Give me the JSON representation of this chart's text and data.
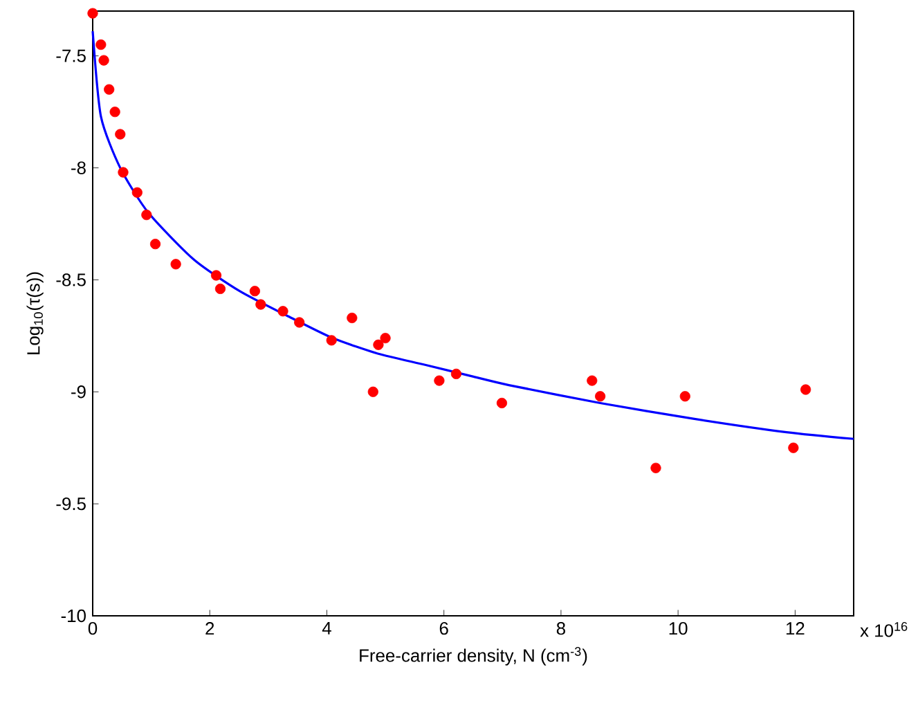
{
  "chart_data": {
    "type": "scatter",
    "xlabel": "Free-carrier density, N (cm$^{-3}$)",
    "ylabel": "Log$_{10}$(τ(s))",
    "annotations": [
      "x 10$^{16}$"
    ],
    "xlim": [
      0,
      13
    ],
    "ylim": [
      -10,
      -7.3
    ],
    "xticks": [
      0,
      2,
      4,
      6,
      8,
      10,
      12
    ],
    "yticks": [
      -10,
      -9.5,
      -9,
      -8.5,
      -8,
      -7.5
    ],
    "series": [
      {
        "marker": "circle",
        "color": "#ff0000",
        "x": [
          0,
          0.14,
          0.19,
          0.28,
          0.38,
          0.47,
          0.52,
          0.76,
          0.92,
          1.07,
          1.42,
          2.11,
          2.18,
          2.77,
          2.87,
          3.25,
          3.53,
          4.08,
          4.43,
          4.79,
          4.88,
          5.0,
          5.92,
          6.21,
          6.99,
          8.53,
          8.67,
          9.62,
          10.12,
          11.97,
          12.18
        ],
        "values": [
          -7.31,
          -7.45,
          -7.52,
          -7.65,
          -7.75,
          -7.85,
          -8.02,
          -8.11,
          -8.21,
          -8.34,
          -8.43,
          -8.48,
          -8.54,
          -8.55,
          -8.61,
          -8.64,
          -8.69,
          -8.77,
          -8.67,
          -9.0,
          -8.79,
          -8.76,
          -8.95,
          -8.92,
          -9.05,
          -8.95,
          -9.02,
          -9.34,
          -9.02,
          -9.25,
          -8.99
        ]
      },
      {
        "type": "line",
        "marker": "none",
        "line_style": "solid",
        "color": "#0000ff",
        "x": [
          0,
          0.14,
          0.47,
          0.95,
          1.73,
          2.51,
          3.32,
          4.1,
          4.88,
          5.69,
          6.47,
          7.11,
          8.67,
          10.26,
          11.85,
          13.0
        ],
        "values": [
          -7.39,
          -7.77,
          -8.0,
          -8.2,
          -8.41,
          -8.55,
          -8.66,
          -8.76,
          -8.83,
          -8.88,
          -8.93,
          -8.97,
          -9.05,
          -9.12,
          -9.18,
          -9.21
        ]
      }
    ]
  }
}
